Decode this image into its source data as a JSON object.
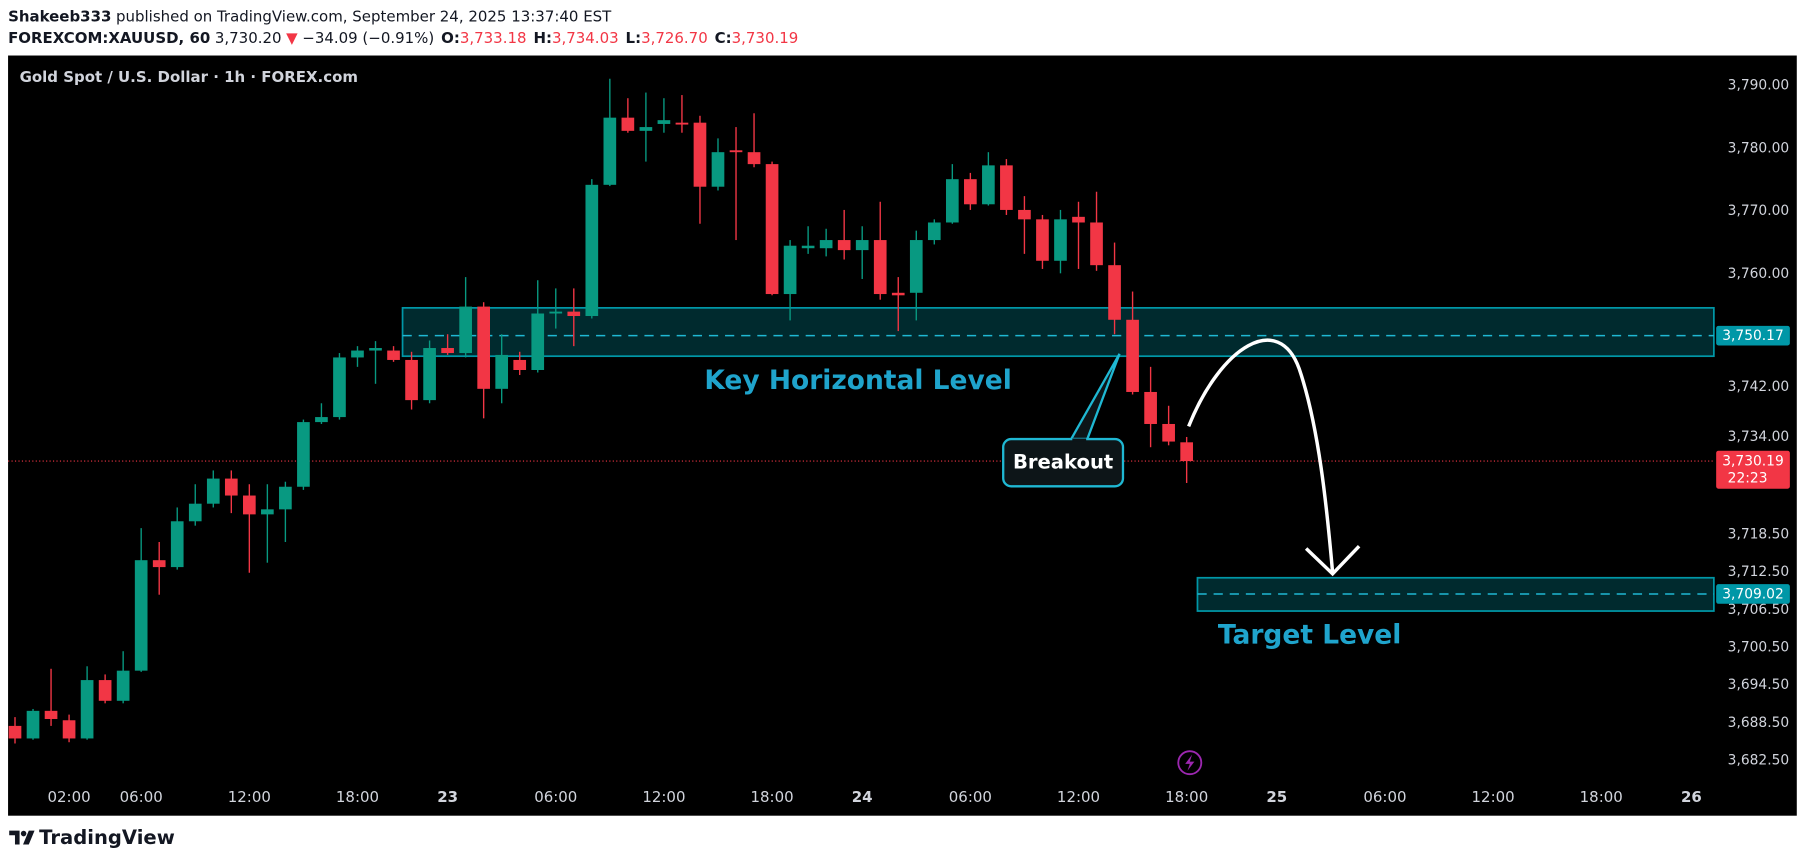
{
  "header": {
    "author": "Shakeeb333",
    "published": "published on TradingView.com, September 24, 2025 13:37:40 EST",
    "symbol": "FOREXCOM:XAUUSD, 60",
    "last": "3,730.20",
    "arrow": "▼",
    "change": "−34.09 (−0.91%)",
    "ohlc": [
      {
        "key": "O:",
        "value": "3,733.18"
      },
      {
        "key": "H:",
        "value": "3,734.03"
      },
      {
        "key": "L:",
        "value": "3,726.70"
      },
      {
        "key": "C:",
        "value": "3,730.19"
      }
    ]
  },
  "chart_data": {
    "type": "candlestick",
    "title": "Gold Spot / U.S. Dollar · 1h · FOREX.com",
    "up_color": "#089981",
    "down_color": "#f23645",
    "grid": false,
    "categories": [
      null,
      null,
      null,
      "02:00",
      null,
      null,
      null,
      "06:00",
      null,
      null,
      null,
      null,
      null,
      "12:00",
      null,
      null,
      null,
      null,
      null,
      "18:00",
      null,
      null,
      null,
      null,
      "23",
      null,
      null,
      null,
      null,
      null,
      "06:00",
      null,
      null,
      null,
      null,
      null,
      "12:00",
      null,
      null,
      null,
      null,
      null,
      "18:00",
      null,
      null,
      null,
      null,
      "24",
      null,
      null,
      null,
      null,
      null,
      "06:00",
      null,
      null,
      null,
      null,
      null,
      "12:00",
      null,
      null,
      null,
      null,
      null,
      "18:00",
      null,
      null,
      null,
      null,
      "25",
      null,
      null,
      null,
      null,
      null,
      "06:00",
      null,
      null,
      null,
      null,
      null,
      "12:00",
      null,
      null,
      null,
      null,
      null,
      "18:00",
      null,
      null,
      null,
      null,
      "26",
      null
    ],
    "open": [
      3688.0,
      3686.0,
      3690.4,
      3688.9,
      3686.0,
      3695.3,
      3692.0,
      3696.8,
      3714.4,
      3713.3,
      3720.6,
      3723.4,
      3727.4,
      3724.7,
      3721.7,
      3722.5,
      3726.1,
      3736.4,
      3737.2,
      3746.7,
      3747.8,
      3747.8,
      3746.3,
      3739.9,
      3748.2,
      3747.4,
      3754.8,
      3741.7,
      3746.3,
      3744.7,
      3753.7,
      3754.0,
      3753.3,
      3774.2,
      3784.9,
      3782.8,
      3783.9,
      3784.1,
      3784.1,
      3773.9,
      3779.7,
      3779.4,
      3777.5,
      3756.8,
      3764.1,
      3764.1,
      3765.4,
      3763.8,
      3765.4,
      3757.0,
      3757.0,
      3765.4,
      3768.2,
      3775.1,
      3771.1,
      3777.3,
      3770.2,
      3768.7,
      3762.1,
      3769.1,
      3768.2,
      3761.4,
      3752.7,
      3741.2,
      3736.1,
      3733.18,
      null,
      null,
      null,
      null,
      null,
      null,
      null,
      null,
      null,
      null,
      null,
      null,
      null,
      null,
      null,
      null,
      null,
      null,
      null,
      null,
      null,
      null,
      null,
      null,
      null,
      null,
      null,
      null,
      null
    ],
    "high": [
      3689.4,
      3690.7,
      3697.1,
      3689.8,
      3697.5,
      3696.2,
      3699.9,
      3719.5,
      3717.3,
      3722.8,
      3726.5,
      3728.7,
      3728.7,
      3726.5,
      3726.5,
      3726.9,
      3736.8,
      3739.4,
      3747.4,
      3748.5,
      3749.3,
      3748.5,
      3747.6,
      3749.4,
      3750.4,
      3759.5,
      3755.5,
      3750.4,
      3747.6,
      3759.0,
      3757.7,
      3757.7,
      3775.1,
      3791.1,
      3788.0,
      3788.9,
      3788.0,
      3788.5,
      3785.2,
      3781.6,
      3783.4,
      3785.6,
      3777.9,
      3765.4,
      3767.6,
      3767.2,
      3770.2,
      3767.6,
      3771.5,
      3759.5,
      3766.9,
      3768.7,
      3777.5,
      3776.1,
      3779.4,
      3778.3,
      3772.4,
      3769.4,
      3770.2,
      3771.5,
      3773.1,
      3765.0,
      3757.2,
      3745.2,
      3739.0,
      3734.03,
      null,
      null,
      null,
      null,
      null,
      null,
      null,
      null,
      null,
      null,
      null,
      null,
      null,
      null,
      null,
      null,
      null,
      null,
      null,
      null,
      null,
      null,
      null,
      null,
      null,
      null,
      null,
      null,
      null
    ],
    "low": [
      3685.2,
      3685.8,
      3688.0,
      3685.4,
      3685.8,
      3691.6,
      3691.6,
      3696.6,
      3708.9,
      3712.9,
      3719.9,
      3722.8,
      3721.9,
      3712.4,
      3714.0,
      3717.3,
      3725.6,
      3736.1,
      3736.8,
      3745.2,
      3742.5,
      3746.0,
      3738.4,
      3739.4,
      3747.1,
      3746.7,
      3737.0,
      3739.4,
      3743.9,
      3744.3,
      3751.3,
      3748.5,
      3752.9,
      3774.0,
      3782.5,
      3777.9,
      3782.5,
      3782.5,
      3768.0,
      3773.3,
      3765.4,
      3777.0,
      3756.6,
      3752.6,
      3763.2,
      3762.8,
      3762.3,
      3759.2,
      3755.9,
      3750.9,
      3752.6,
      3764.7,
      3768.0,
      3770.2,
      3770.9,
      3769.4,
      3763.2,
      3760.8,
      3760.1,
      3760.8,
      3760.5,
      3750.4,
      3740.8,
      3732.4,
      3732.7,
      3726.7,
      null,
      null,
      null,
      null,
      null,
      null,
      null,
      null,
      null,
      null,
      null,
      null,
      null,
      null,
      null,
      null,
      null,
      null,
      null,
      null,
      null,
      null,
      null,
      null,
      null,
      null,
      null,
      null,
      null
    ],
    "close": [
      3686.0,
      3690.4,
      3689.1,
      3686.0,
      3695.3,
      3692.0,
      3696.8,
      3714.4,
      3713.3,
      3720.6,
      3723.4,
      3727.4,
      3724.7,
      3721.7,
      3722.5,
      3726.1,
      3736.4,
      3737.2,
      3746.7,
      3747.8,
      3748.2,
      3746.3,
      3739.9,
      3748.2,
      3747.4,
      3754.8,
      3741.7,
      3747.1,
      3744.7,
      3753.7,
      3754.0,
      3753.3,
      3774.2,
      3784.9,
      3782.8,
      3783.4,
      3784.5,
      3783.8,
      3773.9,
      3779.4,
      3779.4,
      3777.5,
      3756.8,
      3764.5,
      3764.5,
      3765.4,
      3763.8,
      3765.4,
      3756.8,
      3756.6,
      3765.4,
      3768.2,
      3775.1,
      3771.1,
      3777.3,
      3770.2,
      3768.7,
      3762.1,
      3768.7,
      3768.2,
      3761.4,
      3752.7,
      3741.2,
      3736.1,
      3733.3,
      3730.19,
      null,
      null,
      null,
      null,
      null,
      null,
      null,
      null,
      null,
      null,
      null,
      null,
      null,
      null,
      null,
      null,
      null,
      null,
      null,
      null,
      null,
      null,
      null,
      null,
      null,
      null,
      null,
      null,
      null
    ],
    "ylim": [
      3679.2,
      3794.8
    ],
    "yticks": [
      {
        "value": 3790,
        "label": "3,790.00"
      },
      {
        "value": 3780,
        "label": "3,780.00"
      },
      {
        "value": 3770,
        "label": "3,770.00"
      },
      {
        "value": 3760,
        "label": "3,760.00"
      },
      {
        "value": 3742,
        "label": "3,742.00"
      },
      {
        "value": 3734,
        "label": "3,734.00"
      },
      {
        "value": 3718.5,
        "label": "3,718.50"
      },
      {
        "value": 3712.5,
        "label": "3,712.50"
      },
      {
        "value": 3706.5,
        "label": "3,706.50"
      },
      {
        "value": 3700.5,
        "label": "3,700.50"
      },
      {
        "value": 3694.5,
        "label": "3,694.50"
      },
      {
        "value": 3688.5,
        "label": "3,688.50"
      },
      {
        "value": 3682.5,
        "label": "3,682.50"
      }
    ],
    "zones": [
      {
        "label": "Key Horizontal Level",
        "level": 3750.17,
        "level_label": "3,750.17",
        "top": 3754.6,
        "bottom": 3746.9,
        "start": 22
      },
      {
        "label": "Target Level",
        "level": 3709.02,
        "level_label": "3,709.02",
        "top": 3711.6,
        "bottom": 3706.3,
        "start": 66.1
      }
    ],
    "last_price": {
      "value": 3730.19,
      "label": "3,730.19",
      "countdown": "22:23"
    },
    "annotations": {
      "breakout": "Breakout"
    }
  },
  "footer": {
    "logo": "TradingView"
  }
}
